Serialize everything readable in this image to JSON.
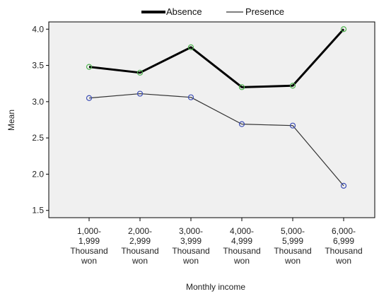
{
  "chart_data": {
    "type": "line",
    "title": "",
    "xlabel": "Monthly income",
    "ylabel": "Mean",
    "categories": [
      [
        "1,000-",
        "1,999",
        "Thousand",
        "won"
      ],
      [
        "2,000-",
        "2,999",
        "Thousand",
        "won"
      ],
      [
        "3,000-",
        "3,999",
        "Thousand",
        "won"
      ],
      [
        "4,000-",
        "4,999",
        "Thousand",
        "won"
      ],
      [
        "5,000-",
        "5,999",
        "Thousand",
        "won"
      ],
      [
        "6,000-",
        "6,999",
        "Thousand",
        "won"
      ]
    ],
    "ylim": [
      1.4,
      4.1
    ],
    "yticks": [
      "1.5",
      "2.0",
      "2.5",
      "3.0",
      "3.5",
      "4.0"
    ],
    "grid": false,
    "legend": "top-center",
    "series": [
      {
        "name": "Absence",
        "values": [
          3.48,
          3.4,
          3.75,
          3.2,
          3.22,
          4.0
        ],
        "color": "#000000",
        "marker_color": "#4fb34f",
        "thick": true
      },
      {
        "name": "Presence",
        "values": [
          3.05,
          3.11,
          3.06,
          2.69,
          2.67,
          1.84
        ],
        "color": "#333333",
        "marker_color": "#3d4fb5",
        "thick": false
      }
    ],
    "plot_background": "#f0f0f0"
  }
}
